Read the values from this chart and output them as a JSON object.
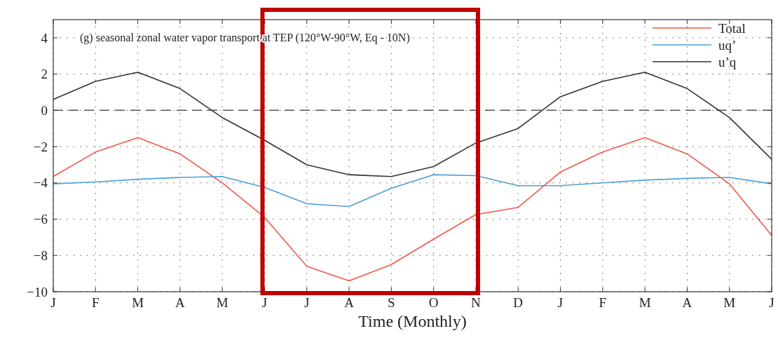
{
  "chart_data": {
    "type": "line",
    "title": "(g) seasonal zonal water vapor transport at TEP (120°W-90°W, Eq - 10N)",
    "xlabel": "Time (Monthly)",
    "categories": [
      "J",
      "F",
      "M",
      "A",
      "M",
      "J",
      "J",
      "A",
      "S",
      "O",
      "N",
      "D",
      "J",
      "F",
      "M",
      "A",
      "M",
      "J"
    ],
    "series": [
      {
        "name": "Total",
        "color": "#f0584a",
        "values": [
          -3.65,
          -2.3,
          -1.5,
          -2.4,
          -4.0,
          -5.9,
          -8.6,
          -9.4,
          -8.5,
          -7.1,
          -5.75,
          -5.35,
          -3.4,
          -2.3,
          -1.5,
          -2.4,
          -4.05,
          -6.9
        ]
      },
      {
        "name": "uq’",
        "color": "#4a9fd8",
        "values": [
          -4.05,
          -3.95,
          -3.8,
          -3.7,
          -3.65,
          -4.25,
          -5.15,
          -5.3,
          -4.3,
          -3.55,
          -3.6,
          -4.15,
          -4.15,
          -4.0,
          -3.85,
          -3.75,
          -3.7,
          -4.05
        ]
      },
      {
        "name": "u’q",
        "color": "#333333",
        "values": [
          0.6,
          1.6,
          2.1,
          1.2,
          -0.4,
          -1.65,
          -3.0,
          -3.55,
          -3.65,
          -3.1,
          -1.8,
          -1.0,
          0.75,
          1.6,
          2.1,
          1.2,
          -0.4,
          -2.7
        ]
      }
    ],
    "ylim": [
      -10,
      5
    ],
    "yticks": [
      {
        "value": -10,
        "label": "−10"
      },
      {
        "value": -8,
        "label": "−8"
      },
      {
        "value": -6,
        "label": "−6"
      },
      {
        "value": -4,
        "label": "−4"
      },
      {
        "value": -2,
        "label": "−2"
      },
      0,
      2,
      4
    ],
    "ref_lines": [
      {
        "axis": "y",
        "value": 0,
        "color": "#555555",
        "line_style": "dashed"
      }
    ],
    "grid": true,
    "legend": "top right",
    "line_style": "solid",
    "marker": "none"
  }
}
